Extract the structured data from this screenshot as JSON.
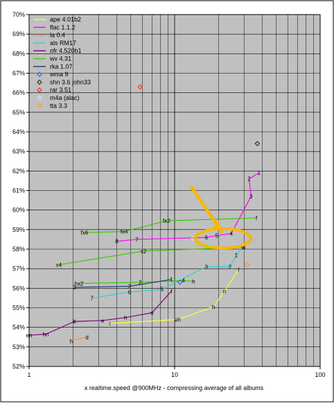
{
  "chart_data": {
    "type": "scatter",
    "xlabel": "x realtime.speed @900MHz - compressing average of all albums",
    "ylabel": "",
    "x_scale": "log",
    "xlim": [
      1,
      100
    ],
    "ylim": [
      52,
      70
    ],
    "x_ticks": [
      1,
      10,
      100
    ],
    "y_ticks": [
      "52%",
      "53%",
      "54%",
      "55%",
      "56%",
      "57%",
      "58%",
      "59%",
      "60%",
      "61%",
      "62%",
      "63%",
      "64%",
      "65%",
      "66%",
      "67%",
      "68%",
      "69%",
      "70%"
    ],
    "grid": true,
    "legend_position": "top-left",
    "series": [
      {
        "name": "ape 4.01b2",
        "color": "#ffff33",
        "kind": "line",
        "points": [
          {
            "x": 3.6,
            "y": 54.2,
            "label": "i"
          },
          {
            "x": 10.5,
            "y": 54.4,
            "label": "eh"
          },
          {
            "x": 18.5,
            "y": 55.05,
            "label": "h"
          },
          {
            "x": 22,
            "y": 55.85,
            "label": "n"
          },
          {
            "x": 27.5,
            "y": 56.95,
            "label": "f"
          }
        ]
      },
      {
        "name": "flac 1.1.2",
        "color": "#ff00ff",
        "kind": "line",
        "points": [
          {
            "x": 4.0,
            "y": 58.4,
            "label": "8"
          },
          {
            "x": 5.5,
            "y": 58.5,
            "label": "7"
          },
          {
            "x": 16.5,
            "y": 58.6,
            "label": "6"
          },
          {
            "x": 19.5,
            "y": 58.7,
            "label": "5"
          },
          {
            "x": 24.5,
            "y": 58.8,
            "label": "4"
          },
          {
            "x": 33.5,
            "y": 60.7,
            "label": "3"
          },
          {
            "x": 32.5,
            "y": 61.6,
            "label": "2"
          },
          {
            "x": 38,
            "y": 61.9,
            "label": "1"
          }
        ]
      },
      {
        "name": "la 0.4",
        "color": "#ff9933",
        "kind": "line",
        "points": [
          {
            "x": 1.95,
            "y": 53.3,
            "label": "h"
          },
          {
            "x": 2.5,
            "y": 53.5,
            "label": "d"
          }
        ]
      },
      {
        "name": "als RM17",
        "color": "#33cccc",
        "kind": "line",
        "points": [
          {
            "x": 2.7,
            "y": 55.5,
            "label": "7"
          },
          {
            "x": 4.9,
            "y": 55.8,
            "label": "6"
          },
          {
            "x": 8.2,
            "y": 55.95,
            "label": "5"
          },
          {
            "x": 16.5,
            "y": 57.1,
            "label": "3"
          },
          {
            "x": 24,
            "y": 57.1,
            "label": "2"
          },
          {
            "x": 26.5,
            "y": 57.7,
            "label": "1"
          },
          {
            "x": 29.5,
            "y": 58.1,
            "label": "0"
          }
        ]
      },
      {
        "name": "ofr 4.520b1",
        "color": "#800080",
        "kind": "line",
        "points": [
          {
            "x": 1.0,
            "y": 53.6,
            "label": "en"
          },
          {
            "x": 1.3,
            "y": 53.65,
            "label": "hn"
          },
          {
            "x": 2.05,
            "y": 54.3,
            "label": "b"
          },
          {
            "x": 3.2,
            "y": 54.35,
            "label": "e"
          },
          {
            "x": 4.6,
            "y": 54.5,
            "label": "h"
          },
          {
            "x": 7.0,
            "y": 54.75,
            "label": "n"
          },
          {
            "x": 9.5,
            "y": 55.85,
            "label": "f"
          }
        ]
      },
      {
        "name": "wv 4.31",
        "color": "#33cc00",
        "kind": "line",
        "points": [
          {
            "x": 1.6,
            "y": 57.2,
            "label": "x4"
          },
          {
            "x": 6.1,
            "y": 57.9,
            "label": "x2"
          },
          {
            "x": 30,
            "y": 58.1,
            "label": "n"
          },
          {
            "x": 2.4,
            "y": 58.85,
            "label": "fx6"
          },
          {
            "x": 4.5,
            "y": 58.9,
            "label": "fx4"
          },
          {
            "x": 8.8,
            "y": 59.45,
            "label": "fx2"
          },
          {
            "x": 36.5,
            "y": 59.6,
            "label": "f"
          },
          {
            "x": 2.2,
            "y": 56.25,
            "label": "hx2"
          },
          {
            "x": 5.8,
            "y": 56.3,
            "label": "2"
          },
          {
            "x": 11.5,
            "y": 56.4,
            "label": "4"
          },
          {
            "x": 13.5,
            "y": 56.35,
            "label": "h"
          }
        ]
      },
      {
        "name": "rka 1.07",
        "color": "#1f3a73",
        "kind": "line",
        "points": [
          {
            "x": 2.05,
            "y": 56.05,
            "label": "3"
          },
          {
            "x": 4.9,
            "y": 56.1,
            "label": "2"
          },
          {
            "x": 9.5,
            "y": 56.45,
            "label": "1"
          }
        ]
      },
      {
        "name": "wma 9",
        "color": "#3366ff",
        "kind": "marker",
        "points": [
          {
            "x": 10.9,
            "y": 56.3
          }
        ]
      },
      {
        "name": "shn 3.6 john33",
        "color": "#333333",
        "kind": "marker",
        "points": [
          {
            "x": 37.0,
            "y": 63.4
          }
        ]
      },
      {
        "name": "rar 3.51",
        "color": "#ff3333",
        "kind": "marker",
        "points": [
          {
            "x": 5.8,
            "y": 66.3
          }
        ]
      },
      {
        "name": "m4a (alac)",
        "color": "#e0e0e0",
        "kind": "marker",
        "points": [
          {
            "x": 13.5,
            "y": 58.55
          }
        ]
      },
      {
        "name": "tta 3.3",
        "color": "#ff9933",
        "kind": "marker",
        "points": [
          {
            "x": 31.5,
            "y": 57.2
          }
        ]
      }
    ],
    "annotations": [
      {
        "type": "arrow",
        "color": "#f5b800"
      },
      {
        "type": "ellipse-highlight",
        "color": "#f5b800"
      }
    ]
  }
}
